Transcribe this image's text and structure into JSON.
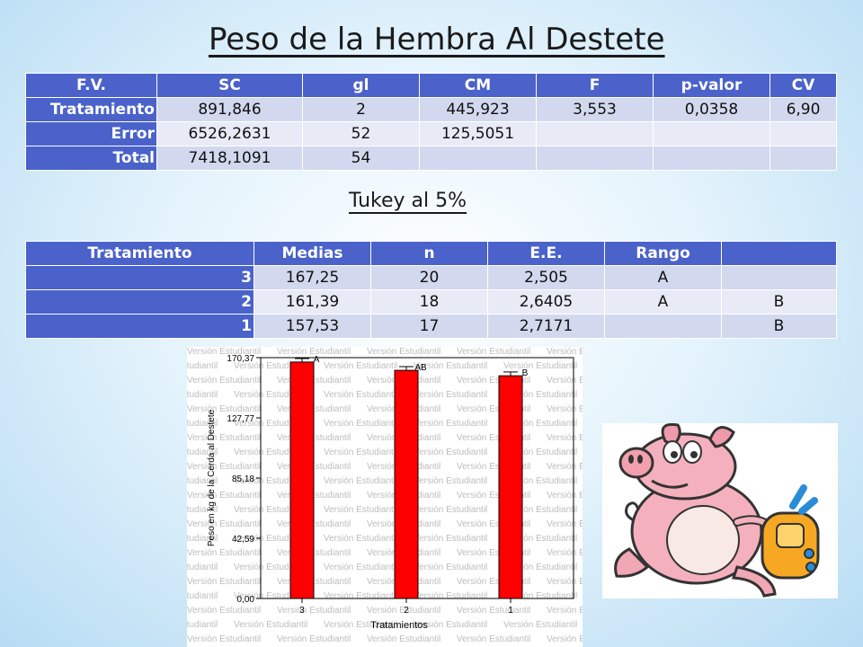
{
  "title": "Peso de la Hembra Al Destete",
  "subtitle": "Tukey al 5%",
  "anova": {
    "headers": [
      "F.V.",
      "SC",
      "gl",
      "CM",
      "F",
      "p-valor",
      "CV"
    ],
    "rows": [
      [
        "Tratamiento",
        "891,846",
        "2",
        "445,923",
        "3,553",
        "0,0358",
        "6,90"
      ],
      [
        "Error",
        "6526,2631",
        "52",
        "125,5051",
        "",
        "",
        ""
      ],
      [
        "Total",
        "7418,1091",
        "54",
        "",
        "",
        "",
        ""
      ]
    ]
  },
  "tukey": {
    "headers": [
      "Tratamiento",
      "Medias",
      "n",
      "E.E.",
      "Rango",
      ""
    ],
    "rows": [
      [
        "3",
        "167,25",
        "20",
        "2,505",
        "A",
        ""
      ],
      [
        "2",
        "161,39",
        "18",
        "2,6405",
        "A",
        "B"
      ],
      [
        "1",
        "157,53",
        "17",
        "2,7171",
        "",
        "B"
      ]
    ]
  },
  "chart_data": {
    "type": "bar",
    "categories": [
      "3",
      "2",
      "1"
    ],
    "values": [
      167.25,
      161.39,
      157.53
    ],
    "errors": [
      2.505,
      2.6405,
      2.7171
    ],
    "bar_labels": [
      "A",
      "AB",
      "B"
    ],
    "ylabel": "Peso en kg de la Cerda al Destete",
    "xlabel": "Tratamientos",
    "yticks": [
      "0,00",
      "42,59",
      "85,18",
      "127,77",
      "170,37"
    ],
    "ylim": [
      0,
      170.37
    ],
    "watermark": "Versión Estudiantil",
    "bar_color": "#ff0000"
  },
  "image": {
    "name": "cartoon pig with backpack"
  }
}
